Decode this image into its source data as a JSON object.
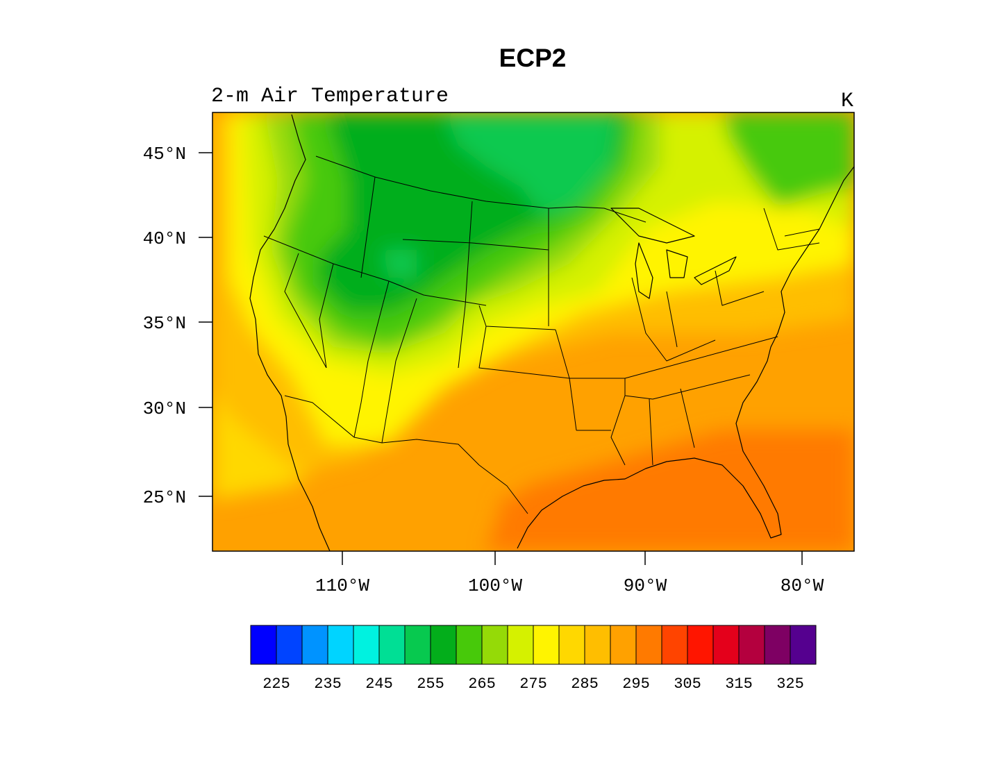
{
  "title": "ECP2",
  "left_string": "2-m Air Temperature",
  "right_string": "K",
  "lat_ticks": [
    "45°N",
    "40°N",
    "35°N",
    "30°N",
    "25°N"
  ],
  "lon_ticks": [
    "110°W",
    "100°W",
    "90°W",
    "80°W"
  ],
  "colorbar": {
    "labels": [
      "225",
      "235",
      "245",
      "255",
      "265",
      "275",
      "285",
      "295",
      "305",
      "315",
      "325"
    ],
    "colors": [
      "#0000ff",
      "#0044ff",
      "#0093ff",
      "#00d4ff",
      "#00f2e0",
      "#00df95",
      "#07c94f",
      "#03ae1b",
      "#47c90a",
      "#95da07",
      "#d5f100",
      "#fff400",
      "#ffd800",
      "#ffbe00",
      "#ffa100",
      "#ff7a00",
      "#ff4400",
      "#ff1500",
      "#e4001b",
      "#b4003e",
      "#7e0063",
      "#55008f"
    ]
  },
  "field": {
    "colors": {
      "green_dark": "#03ae1b",
      "green_mid": "#07c94f",
      "green_light": "#47c90a",
      "yellow_green": "#95da07",
      "lime": "#d5f100",
      "yellow": "#fff400",
      "gold": "#ffd800",
      "amber": "#ffbe00",
      "orange_light": "#ffa100",
      "orange": "#ff7a00",
      "orange_red": "#ff4400"
    }
  }
}
